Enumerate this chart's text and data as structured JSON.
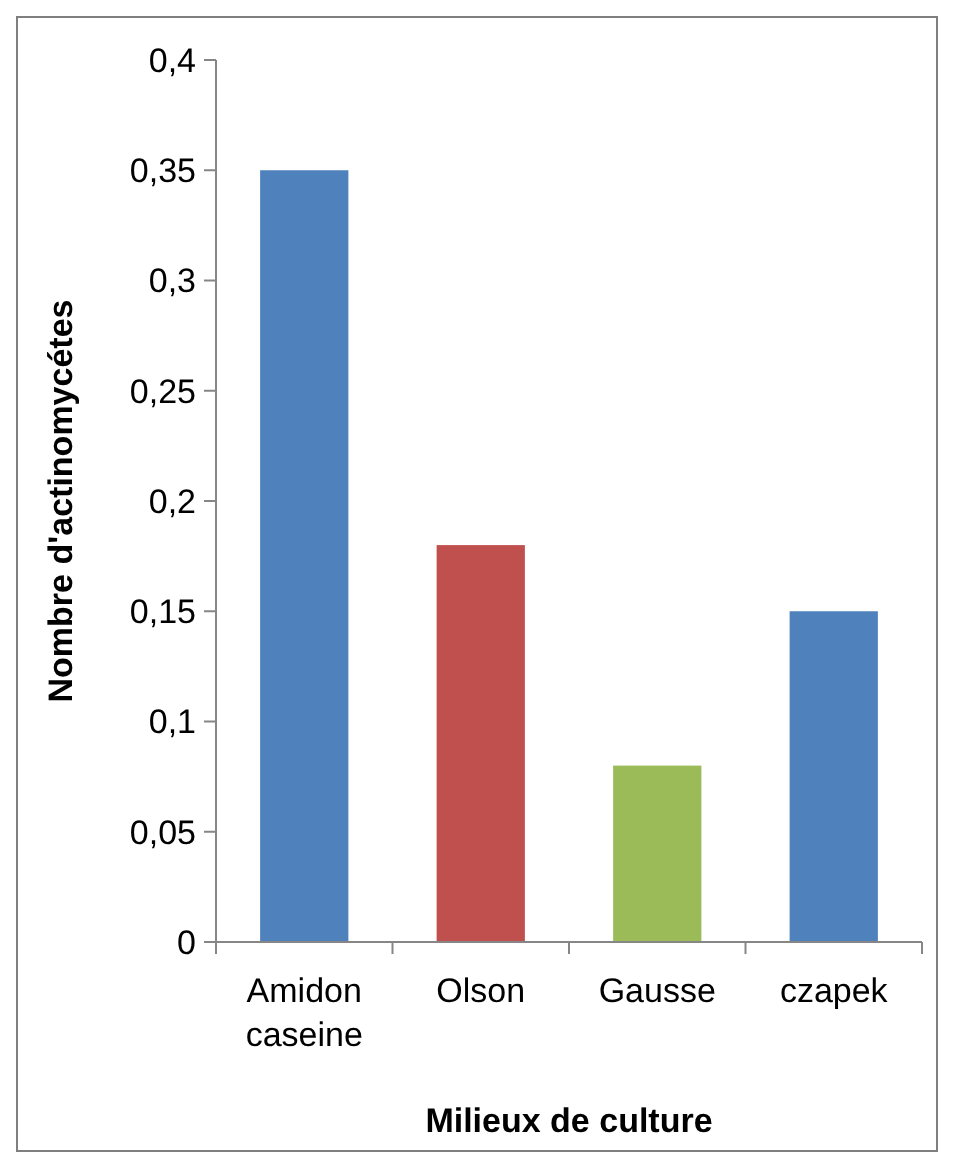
{
  "chart_data": {
    "type": "bar",
    "xlabel": "Milieux de culture",
    "ylabel": "Nombre d'actinomycétes",
    "categories": [
      "Amidon caseine",
      "Olson",
      "Gausse",
      "czapek"
    ],
    "values": [
      0.35,
      0.18,
      0.08,
      0.15
    ],
    "colors": [
      "#4f81bd",
      "#c0504d",
      "#9bbb59",
      "#4f81bd"
    ],
    "ylim": [
      0,
      0.4
    ],
    "yticks": [
      0,
      {
        "value": 0.05,
        "label": "0,05"
      },
      {
        "value": 0.1,
        "label": "0,1"
      },
      {
        "value": 0.15,
        "label": "0,15"
      },
      {
        "value": 0.2,
        "label": "0,2"
      },
      {
        "value": 0.25,
        "label": "0,25"
      },
      {
        "value": 0.3,
        "label": "0,3"
      },
      {
        "value": 0.35,
        "label": "0,35"
      },
      {
        "value": 0.4,
        "label": "0,4"
      }
    ],
    "grid": false
  }
}
